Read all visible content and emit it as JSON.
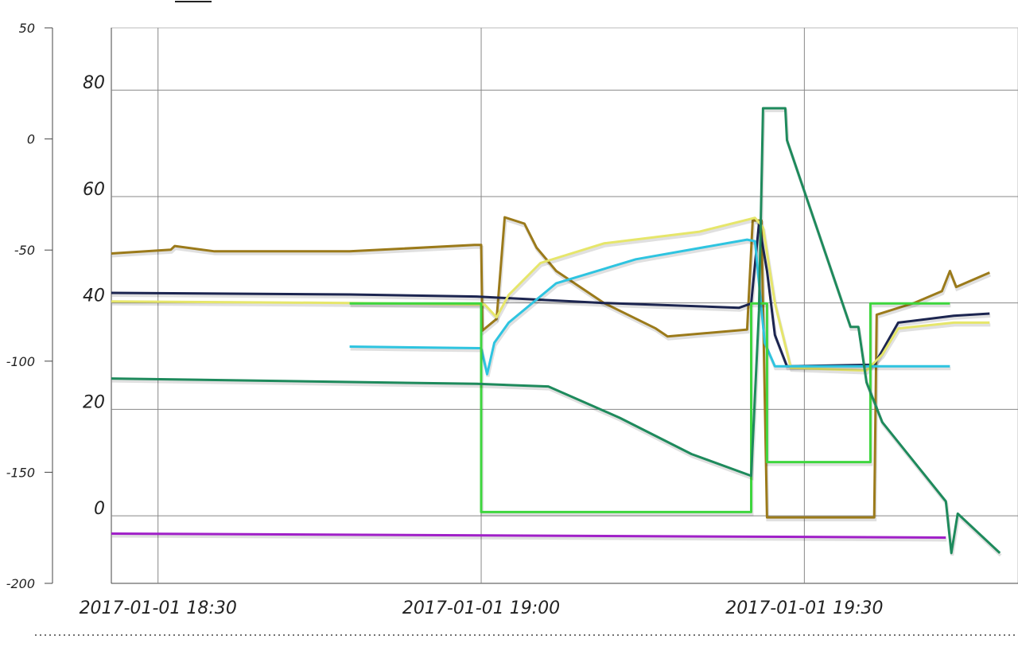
{
  "chart_data": {
    "type": "line",
    "xlim": [
      "2017-01-01 18:25:40",
      "2017-01-01 19:49:50"
    ],
    "xticks": [
      "2017-01-01 18:30",
      "2017-01-01 19:00",
      "2017-01-01 19:30"
    ],
    "ylim": [
      -12.7,
      91.7
    ],
    "yticks": [
      0,
      20,
      40,
      60,
      80
    ],
    "y2lim": [
      -200,
      50
    ],
    "y2ticks": [
      -200,
      -150,
      -100,
      -50,
      0,
      50
    ],
    "grid": true,
    "series": [
      {
        "color": "#9b7a1a",
        "x": [
          "2017-01-01 18:25:40",
          "2017-01-01 18:31:11",
          "2017-01-01 18:31:33",
          "2017-01-01 18:35:14",
          "2017-01-01 18:47:47",
          "2017-01-01 18:59:22",
          "2017-01-01 19:00:00",
          "2017-01-01 19:00:07",
          "2017-01-01 19:01:26",
          "2017-01-01 19:02:11",
          "2017-01-01 19:04:01",
          "2017-01-01 19:05:08",
          "2017-01-01 19:06:58",
          "2017-01-01 19:11:24",
          "2017-01-01 19:16:12",
          "2017-01-01 19:17:18",
          "2017-01-01 19:24:41",
          "2017-01-01 19:25:12",
          "2017-01-01 19:26:01",
          "2017-01-01 19:26:32",
          "2017-01-01 19:36:29",
          "2017-01-01 19:36:43",
          "2017-01-01 19:40:11",
          "2017-01-01 19:42:46",
          "2017-01-01 19:43:31",
          "2017-01-01 19:44:06",
          "2017-01-01 19:47:12"
        ],
        "values": [
          49.3,
          50,
          50.7,
          49.7,
          49.7,
          50.9,
          50.9,
          34.8,
          37,
          56.1,
          54.9,
          50.4,
          46,
          40,
          35.2,
          33.7,
          35,
          55.5,
          55.5,
          -0.3,
          -0.3,
          37.8,
          40,
          42.2,
          46,
          43,
          45.7
        ]
      },
      {
        "color": "#1c2550",
        "x": [
          "2017-01-01 18:25:40",
          "2017-01-01 18:47:47",
          "2017-01-01 18:59:36",
          "2017-01-01 19:11:24",
          "2017-01-01 19:23:57",
          "2017-01-01 19:25:04",
          "2017-01-01 19:25:47",
          "2017-01-01 19:26:32",
          "2017-01-01 19:27:16",
          "2017-01-01 19:28:23",
          "2017-01-01 19:36:29",
          "2017-01-01 19:37:14",
          "2017-01-01 19:38:43",
          "2017-01-01 19:43:52",
          "2017-01-01 19:47:12"
        ],
        "values": [
          41.9,
          41.6,
          41.2,
          40,
          39.1,
          39.9,
          54.9,
          46,
          34,
          28.1,
          28.4,
          31,
          36.3,
          37.6,
          38
        ]
      },
      {
        "color": "#e6e66a",
        "x": [
          "2017-01-01 18:25:40",
          "2017-01-01 18:47:47",
          "2017-01-01 19:00:20",
          "2017-01-01 19:01:26",
          "2017-01-01 19:02:33",
          "2017-01-01 19:05:30",
          "2017-01-01 19:11:24",
          "2017-01-01 19:20:16",
          "2017-01-01 19:25:25",
          "2017-01-01 19:26:10",
          "2017-01-01 19:27:16",
          "2017-01-01 19:28:45",
          "2017-01-01 19:35:46",
          "2017-01-01 19:37:14",
          "2017-01-01 19:38:43",
          "2017-01-01 19:43:52",
          "2017-01-01 19:47:12"
        ],
        "values": [
          40.3,
          40,
          39.7,
          37.3,
          41.5,
          47.5,
          51.2,
          53.4,
          56,
          54.2,
          40,
          27.8,
          27.3,
          30.3,
          35.2,
          36.3,
          36.3
        ]
      },
      {
        "color": "#2ec4e0",
        "x": [
          "2017-01-01 18:47:47",
          "2017-01-01 19:00:00",
          "2017-01-01 19:00:33",
          "2017-01-01 19:01:13",
          "2017-01-01 19:02:33",
          "2017-01-01 19:06:58",
          "2017-01-01 19:14:21",
          "2017-01-01 19:24:41",
          "2017-01-01 19:25:25",
          "2017-01-01 19:26:19",
          "2017-01-01 19:27:16",
          "2017-01-01 19:43:31"
        ],
        "values": [
          31.8,
          31.5,
          26.6,
          32.5,
          36.3,
          43.7,
          48.2,
          51.9,
          51.6,
          32.5,
          28.1,
          28.1
        ]
      },
      {
        "color": "#3ed63e",
        "x": [
          "2017-01-01 18:47:47",
          "2017-01-01 19:00:00",
          "2017-01-01 19:00:00",
          "2017-01-01 19:25:04",
          "2017-01-01 19:25:04",
          "2017-01-01 19:26:32",
          "2017-01-01 19:26:32",
          "2017-01-01 19:36:08",
          "2017-01-01 19:36:08",
          "2017-01-01 19:43:31"
        ],
        "values": [
          39.9,
          39.9,
          0.7,
          0.7,
          39.9,
          39.9,
          10.1,
          10.1,
          39.9,
          39.9
        ]
      },
      {
        "color": "#1e8a5c",
        "x": [
          "2017-01-01 18:25:40",
          "2017-01-01 18:59:36",
          "2017-01-01 19:06:14",
          "2017-01-01 19:12:53",
          "2017-01-01 19:19:31",
          "2017-01-01 19:25:04",
          "2017-01-01 19:25:47",
          "2017-01-01 19:26:10",
          "2017-01-01 19:28:14",
          "2017-01-01 19:28:23",
          "2017-01-01 19:34:17",
          "2017-01-01 19:35:01",
          "2017-01-01 19:35:46",
          "2017-01-01 19:37:14",
          "2017-01-01 19:43:08",
          "2017-01-01 19:43:39",
          "2017-01-01 19:44:14",
          "2017-01-01 19:48:09"
        ],
        "values": [
          25.8,
          24.8,
          24.3,
          18.4,
          11.6,
          7.5,
          38.5,
          76.6,
          76.6,
          70.6,
          35.5,
          35.5,
          25.1,
          17.6,
          2.7,
          -7,
          0.4,
          -7
        ]
      },
      {
        "color": "#a020c8",
        "axis": "y2",
        "x": [
          "2017-01-01 18:25:40",
          "2017-01-01 19:43:08"
        ],
        "values": [
          -177.6,
          -179.4
        ]
      }
    ]
  }
}
